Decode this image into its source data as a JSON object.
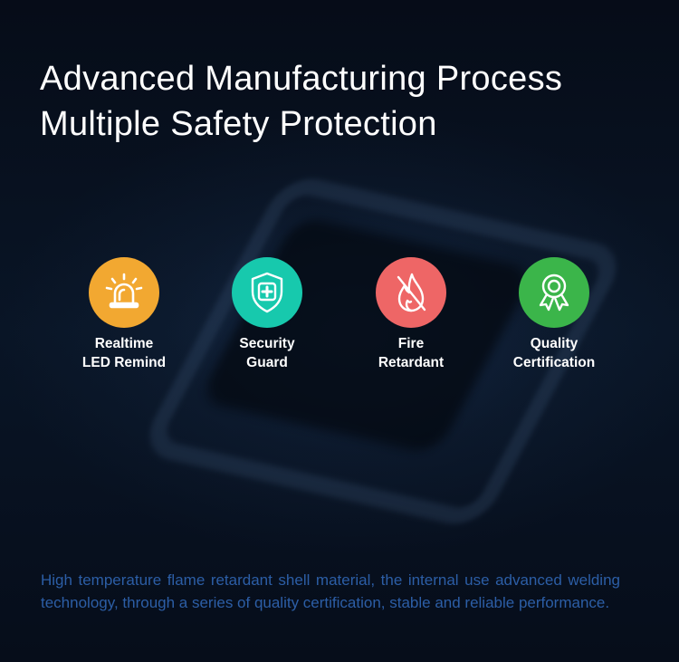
{
  "title": {
    "line1": "Advanced Manufacturing Process",
    "line2": "Multiple Safety Protection"
  },
  "features": [
    {
      "line1": "Realtime",
      "line2": "LED Remind",
      "icon": "alarm-light-icon",
      "color": "#f2a831"
    },
    {
      "line1": "Security",
      "line2": "Guard",
      "icon": "shield-plus-icon",
      "color": "#17c9ad"
    },
    {
      "line1": "Fire",
      "line2": "Retardant",
      "icon": "no-fire-icon",
      "color": "#ee6666"
    },
    {
      "line1": "Quality",
      "line2": "Certification",
      "icon": "award-ribbon-icon",
      "color": "#3bb54a"
    }
  ],
  "description": "High temperature flame retardant shell material, the internal use advanced welding technology, through a series of quality certification, stable and reliable performance.",
  "colors": {
    "background": "#050b17",
    "description_text": "#2c5ea6"
  }
}
